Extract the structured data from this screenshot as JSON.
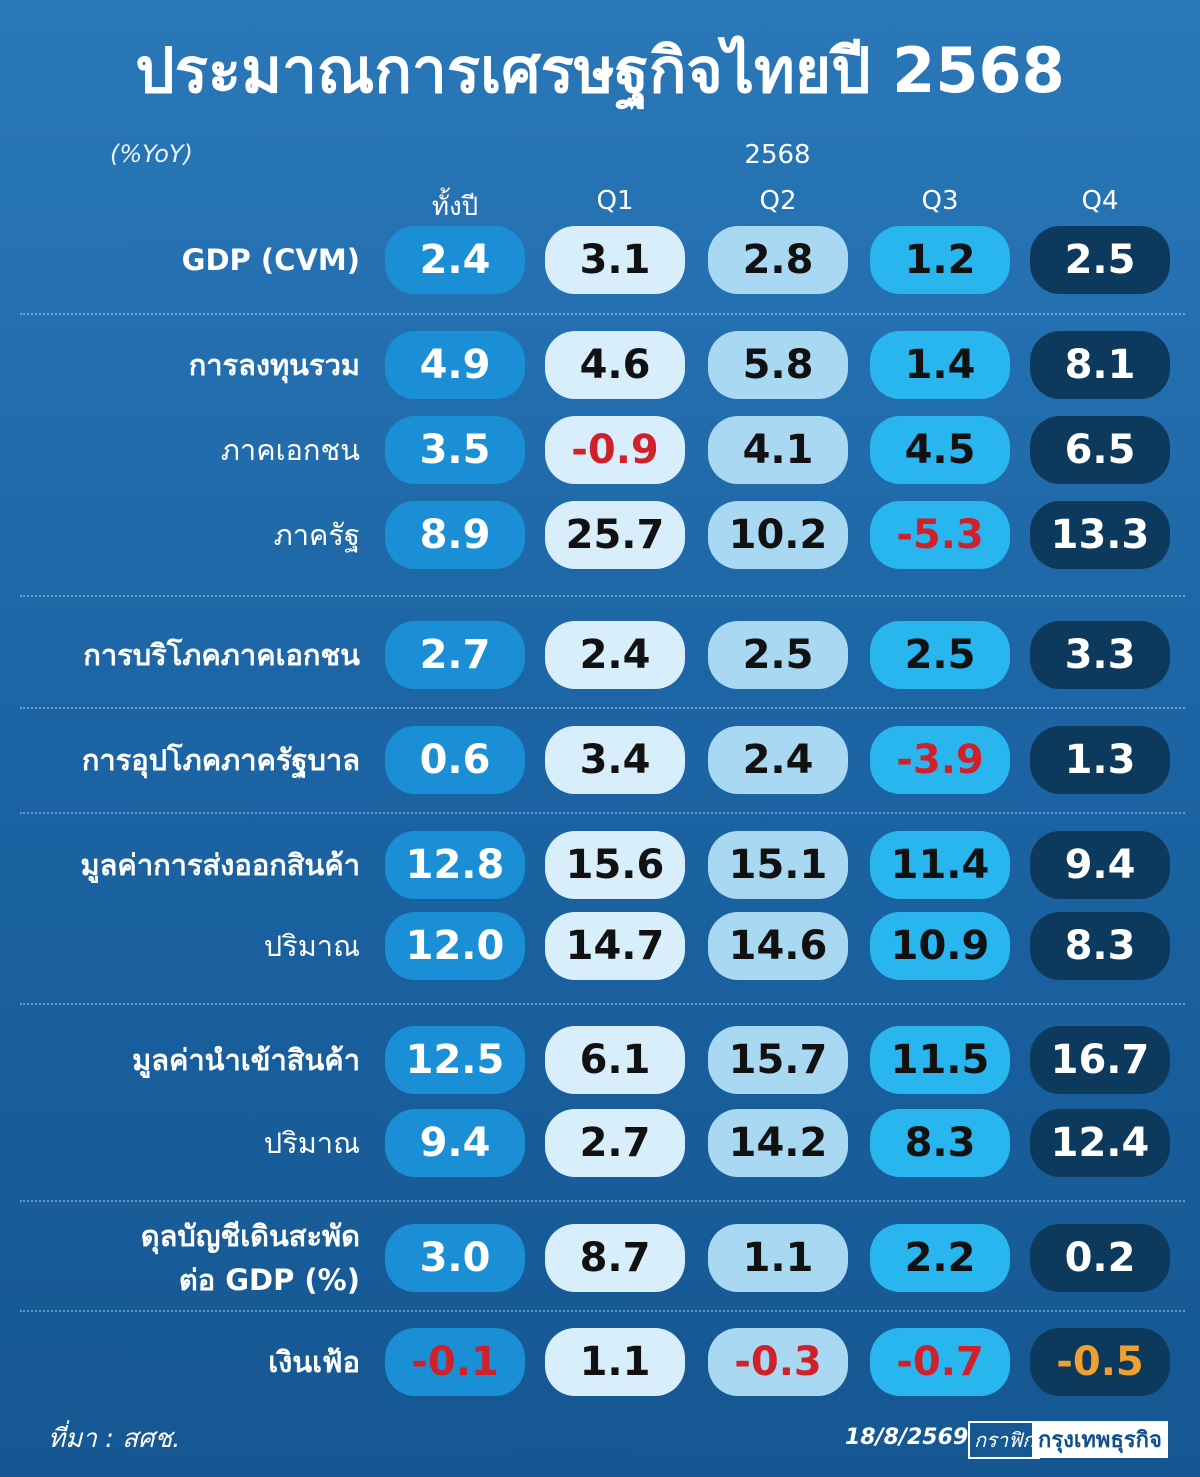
{
  "title": "ประมาณการเศรษฐกิจไทยปี 2568",
  "unit": "(%YoY)",
  "year_header": "2568",
  "columns": [
    "ทั้งปี",
    "Q1",
    "Q2",
    "Q3",
    "Q4"
  ],
  "rows": [
    {
      "label": "GDP (CVM)",
      "values": [
        "2.4",
        "3.1",
        "2.8",
        "1.2",
        "2.5"
      ]
    },
    {
      "label": "การลงทุนรวม",
      "values": [
        "4.9",
        "4.6",
        "5.8",
        "1.4",
        "8.1"
      ]
    },
    {
      "label": "ภาคเอกชน",
      "values": [
        "3.5",
        "-0.9",
        "4.1",
        "4.5",
        "6.5"
      ]
    },
    {
      "label": "ภาครัฐ",
      "values": [
        "8.9",
        "25.7",
        "10.2",
        "-5.3",
        "13.3"
      ]
    },
    {
      "label": "การบริโภคภาคเอกชน",
      "values": [
        "2.7",
        "2.4",
        "2.5",
        "2.5",
        "3.3"
      ]
    },
    {
      "label": "การอุปโภคภาครัฐบาล",
      "values": [
        "0.6",
        "3.4",
        "2.4",
        "-3.9",
        "1.3"
      ]
    },
    {
      "label": "มูลค่าการส่งออกสินค้า",
      "values": [
        "12.8",
        "15.6",
        "15.1",
        "11.4",
        "9.4"
      ]
    },
    {
      "label": "ปริมาณ",
      "values": [
        "12.0",
        "14.7",
        "14.6",
        "10.9",
        "8.3"
      ]
    },
    {
      "label": "มูลค่านำเข้าสินค้า",
      "values": [
        "12.5",
        "6.1",
        "15.7",
        "11.5",
        "16.7"
      ]
    },
    {
      "label": "ปริมาณ",
      "values": [
        "9.4",
        "2.7",
        "14.2",
        "8.3",
        "12.4"
      ]
    },
    {
      "label": [
        "ดุลบัญชีเดินสะพัด",
        "ต่อ GDP (%)"
      ],
      "values": [
        "3.0",
        "8.7",
        "1.1",
        "2.2",
        "0.2"
      ]
    },
    {
      "label": "เงินเฟ้อ",
      "values": [
        "-0.1",
        "1.1",
        "-0.3",
        "-0.7",
        "-0.5"
      ]
    }
  ],
  "footer": {
    "source": "ที่มา : สศช.",
    "date": "18/8/2569",
    "graphic": "กราฟิก",
    "brand": "กรุงเทพธุรกิจ"
  }
}
